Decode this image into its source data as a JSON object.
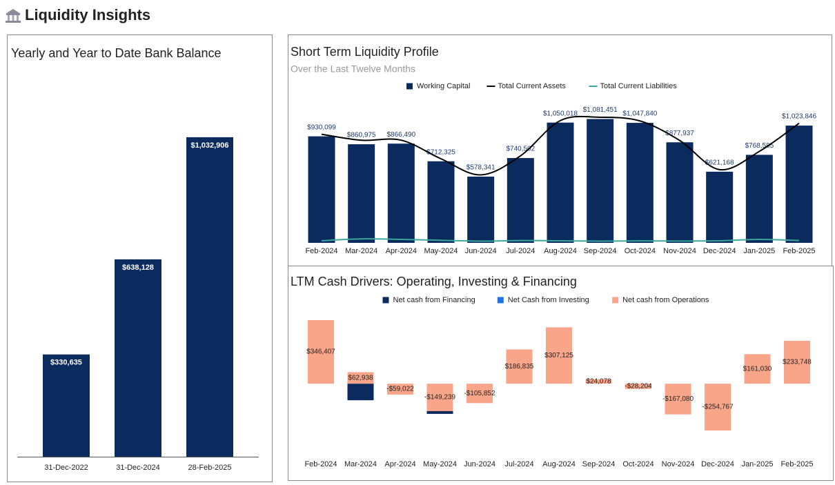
{
  "title": "Liquidity Insights",
  "chart_data": [
    {
      "type": "bar",
      "title": "Yearly and Year to Date Bank Balance",
      "categories": [
        "31-Dec-2022",
        "31-Dec-2024",
        "28-Feb-2025"
      ],
      "values": [
        330635,
        638128,
        1032906
      ],
      "value_labels": [
        "$330,635",
        "$638,128",
        "$1,032,906"
      ],
      "color": "#0b2a5e"
    },
    {
      "type": "combo",
      "title": "Short Term Liquidity Profile",
      "subtitle": "Over the Last Twelve Months",
      "categories": [
        "Feb-2024",
        "Mar-2024",
        "Apr-2024",
        "May-2024",
        "Jun-2024",
        "Jul-2024",
        "Aug-2024",
        "Sep-2024",
        "Oct-2024",
        "Nov-2024",
        "Dec-2024",
        "Jan-2025",
        "Feb-2025"
      ],
      "series": [
        {
          "name": "Working Capital",
          "type": "bar",
          "color": "#0b2a5e",
          "values": [
            930099,
            860975,
            866490,
            712325,
            578341,
            740502,
            1050018,
            1081451,
            1047840,
            877937,
            621168,
            768585,
            1023846
          ],
          "value_labels": [
            "$930,099",
            "$860,975",
            "$866,490",
            "$712,325",
            "$578,341",
            "$740,502",
            "$1,050,018",
            "$1,081,451",
            "$1,047,840",
            "$877,937",
            "$621,168",
            "$768,585",
            "$1,023,846"
          ]
        },
        {
          "name": "Total Current Assets",
          "type": "line",
          "color": "#000000",
          "values": [
            948099,
            895975,
            896490,
            734325,
            593341,
            760502,
            1068018,
            1096451,
            1064840,
            893937,
            639168,
            798585,
            1043846
          ]
        },
        {
          "name": "Total Current Liabilities",
          "type": "line",
          "color": "#3aa89c",
          "values": [
            18000,
            35000,
            30000,
            22000,
            15000,
            20000,
            18000,
            15000,
            17000,
            16000,
            18000,
            30000,
            20000
          ]
        }
      ]
    },
    {
      "type": "stacked_bar",
      "title": "LTM Cash Drivers: Operating, Investing & Financing",
      "categories": [
        "Feb-2024",
        "Mar-2024",
        "Apr-2024",
        "May-2024",
        "Jun-2024",
        "Jul-2024",
        "Aug-2024",
        "Sep-2024",
        "Oct-2024",
        "Nov-2024",
        "Dec-2024",
        "Jan-2025",
        "Feb-2025"
      ],
      "series": [
        {
          "name": "Net cash from Financing",
          "color": "#0b2a5e",
          "values": [
            0,
            -90000,
            0,
            -15000,
            0,
            0,
            0,
            0,
            0,
            0,
            0,
            0,
            0
          ]
        },
        {
          "name": "Net Cash from Investing",
          "color": "#1a73e8",
          "values": [
            0,
            0,
            0,
            0,
            0,
            0,
            0,
            0,
            0,
            0,
            0,
            0,
            0
          ]
        },
        {
          "name": "Net cash from Operations",
          "color": "#f9a58a",
          "values": [
            346407,
            62938,
            -59022,
            -149239,
            -105852,
            186835,
            307125,
            24078,
            -28204,
            -167080,
            -254767,
            161030,
            233748
          ],
          "value_labels": [
            "$346,407",
            "$62,938",
            "-$59,022",
            "-$149,239",
            "-$105,852",
            "$186,835",
            "$307,125",
            "$24,078",
            "-$28,204",
            "-$167,080",
            "-$254,767",
            "$161,030",
            "$233,748"
          ]
        }
      ]
    }
  ]
}
